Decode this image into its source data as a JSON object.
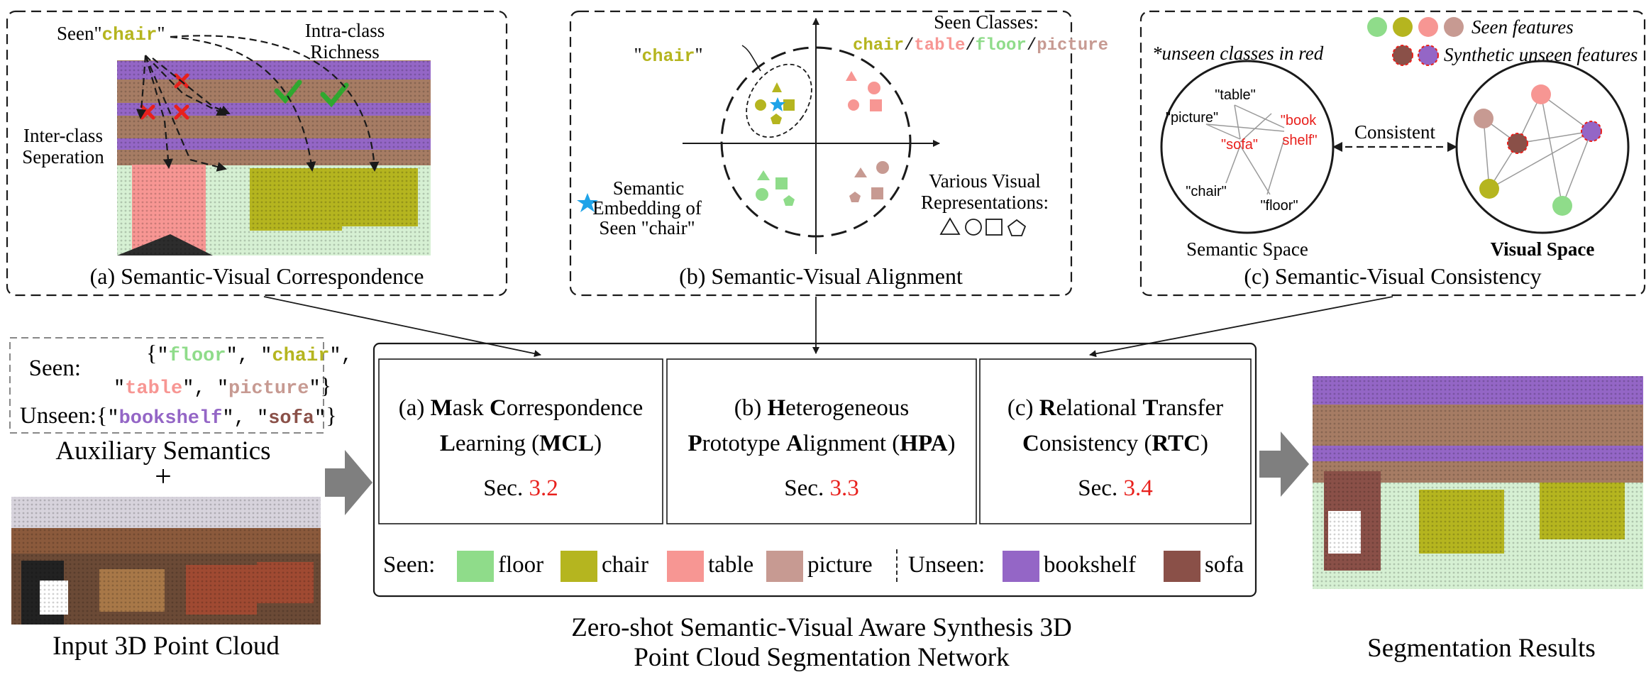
{
  "colors": {
    "floor": "#8fdc8a",
    "chair": "#b5b51f",
    "table": "#f79693",
    "picture": "#c79a92",
    "bookshelf": "#9466c6",
    "sofa": "#8a5048",
    "red_ref": "#e8201c",
    "check": "#2fa82f"
  },
  "panel_a": {
    "caption": "(a) Semantic-Visual Correspondence",
    "seen_prefix": "Seen\"",
    "seen_word": "chair",
    "seen_suffix": "\"",
    "intra_1": "Intra-class",
    "intra_2": "Richness",
    "inter_1": "Inter-class",
    "inter_2": "Seperation"
  },
  "panel_b": {
    "caption": "(b) Semantic-Visual Alignment",
    "chair_quote_open": "\"",
    "chair_word": "chair",
    "chair_quote_close": "\"",
    "seen_classes_title": "Seen Classes:",
    "seen_classes": [
      "chair",
      "table",
      "floor",
      "picture"
    ],
    "sep": "/",
    "sem_emb_1": "Semantic",
    "sem_emb_2": "Embedding of",
    "sem_emb_3": "Seen \"chair\"",
    "various_1": "Various Visual",
    "various_2": "Representations:"
  },
  "panel_c": {
    "caption": "(c) Semantic-Visual Consistency",
    "unseen_note": "*unseen classes in red",
    "seen_features": "Seen features",
    "synthetic_features": "Synthetic unseen features",
    "sem_words": {
      "table": "\"table\"",
      "picture": "\"picture\"",
      "book": "\"book",
      "shelf": "shelf\"",
      "sofa": "\"sofa\"",
      "chair": "\"chair\"",
      "floor": "\"floor\""
    },
    "consistent": "Consistent",
    "semantic_space": "Semantic Space",
    "visual_space": "Visual Space"
  },
  "aux": {
    "seen_label": "Seen:",
    "unseen_label": "Unseen:",
    "brace_open": "{",
    "brace_close": "}",
    "comma": ", ",
    "seen_classes": [
      "floor",
      "chair",
      "table",
      "picture"
    ],
    "unseen_classes": [
      "bookshelf",
      "sofa"
    ],
    "title": "Auxiliary Semantics",
    "plus": "+",
    "input_title": "Input 3D Point Cloud"
  },
  "modules": [
    {
      "line1_pre": "(a) ",
      "line1_b1": "M",
      "line1_r1": "ask ",
      "line1_b2": "C",
      "line1_r2": "orrespondence",
      "line2_b1": "L",
      "line2_r1": "earning (",
      "line2_b2": "MCL",
      "line2_r2": ")",
      "sec_pre": "Sec. ",
      "sec_num": "3.2"
    },
    {
      "line1_pre": "(b) ",
      "line1_b1": "H",
      "line1_r1": "eterogeneous",
      "line1_b2": "",
      "line1_r2": "",
      "line2_b1": "P",
      "line2_r1": "rototype ",
      "line2_b2": "A",
      "line2_r2": "lignment (",
      "line2_b3": "HPA",
      "line2_r3": ")",
      "sec_pre": "Sec. ",
      "sec_num": "3.3"
    },
    {
      "line1_pre": "(c) ",
      "line1_b1": "R",
      "line1_r1": "elational ",
      "line1_b2": "T",
      "line1_r2": "ransfer",
      "line2_b1": "C",
      "line2_r1": "onsistency (",
      "line2_b2": "RTC",
      "line2_r2": ")",
      "sec_pre": "Sec. ",
      "sec_num": "3.4"
    }
  ],
  "legend": {
    "seen_label": "Seen:",
    "unseen_label": "Unseen:",
    "seen": [
      "floor",
      "chair",
      "table",
      "picture"
    ],
    "unseen": [
      "bookshelf",
      "sofa"
    ]
  },
  "network_title_1": "Zero-shot Semantic-Visual Aware Synthesis 3D",
  "network_title_2": "Point Cloud Segmentation Network",
  "seg_title": "Segmentation Results"
}
